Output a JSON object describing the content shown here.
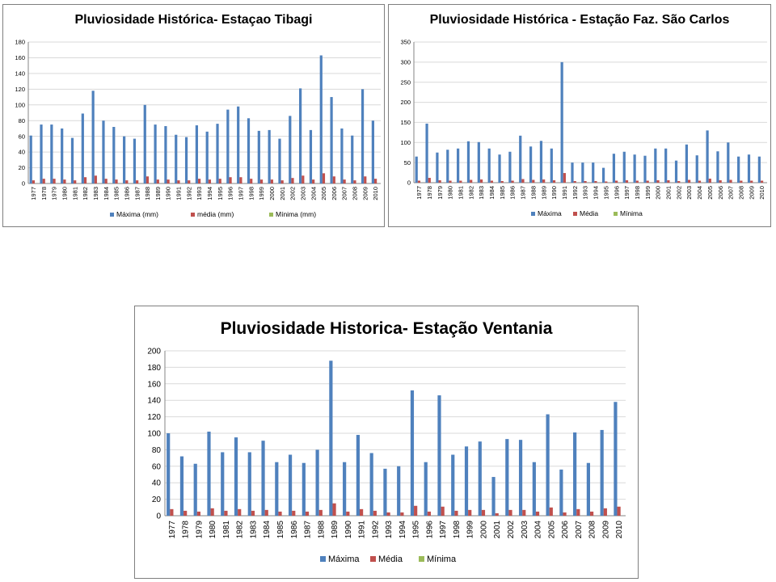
{
  "colors": {
    "maxima": "#4F81BD",
    "media": "#C0504D",
    "minima": "#9BBB59",
    "grid": "#D9D9D9",
    "axis": "#868686",
    "frame": "#7F7F7F"
  },
  "chart_data": [
    {
      "type": "bar",
      "title": "Pluviosidade Histórica- Estaçao Tibagi",
      "categories": [
        "1977",
        "1978",
        "1979",
        "1980",
        "1981",
        "1982",
        "1983",
        "1984",
        "1985",
        "1986",
        "1987",
        "1988",
        "1989",
        "1990",
        "1991",
        "1992",
        "1993",
        "1994",
        "1995",
        "1996",
        "1997",
        "1998",
        "1999",
        "2000",
        "2001",
        "2002",
        "2003",
        "2004",
        "2005",
        "2006",
        "2007",
        "2008",
        "2009",
        "2010"
      ],
      "series": [
        {
          "name": "Máxima (mm)",
          "color": "#4F81BD",
          "values": [
            61,
            75,
            75,
            70,
            58,
            89,
            118,
            80,
            72,
            60,
            57,
            100,
            75,
            73,
            62,
            59,
            74,
            66,
            76,
            94,
            98,
            83,
            67,
            68,
            57,
            86,
            121,
            68,
            163,
            110,
            70,
            61,
            120,
            80
          ]
        },
        {
          "name": "média (mm)",
          "color": "#C0504D",
          "values": [
            4,
            6,
            6,
            5,
            4,
            8,
            10,
            6,
            5,
            4,
            4,
            9,
            5,
            5,
            4,
            4,
            6,
            5,
            6,
            8,
            8,
            6,
            5,
            5,
            4,
            7,
            10,
            5,
            13,
            9,
            5,
            4,
            9,
            6
          ]
        },
        {
          "name": "Mínima (mm)",
          "color": "#9BBB59",
          "values": [
            0,
            0,
            0,
            0,
            0,
            0,
            0,
            0,
            0,
            0,
            0,
            0,
            0,
            0,
            0,
            0,
            0,
            0,
            0,
            0,
            0,
            0,
            0,
            0,
            0,
            0,
            0,
            0,
            0,
            0,
            0,
            0,
            0,
            0
          ]
        }
      ],
      "yticks": [
        "0",
        "20",
        "40",
        "60",
        "80",
        "100",
        "120",
        "140",
        "160",
        "180"
      ],
      "ylim": [
        0,
        180
      ],
      "grid": true,
      "legend": "bottom"
    },
    {
      "type": "bar",
      "title": "Pluviosidade Histórica - Estação Faz. São Carlos",
      "categories": [
        "1977",
        "1978",
        "1979",
        "1980",
        "1981",
        "1982",
        "1983",
        "1984",
        "1985",
        "1986",
        "1987",
        "1988",
        "1989",
        "1990",
        "1991",
        "1992",
        "1993",
        "1994",
        "1995",
        "1996",
        "1997",
        "1998",
        "1999",
        "2000",
        "2001",
        "2002",
        "2003",
        "2004",
        "2005",
        "2006",
        "2007",
        "2008",
        "2009",
        "2010"
      ],
      "series": [
        {
          "name": "Máxima",
          "color": "#4F81BD",
          "values": [
            65,
            147,
            75,
            82,
            85,
            103,
            101,
            85,
            70,
            77,
            117,
            90,
            104,
            85,
            300,
            50,
            50,
            50,
            37,
            72,
            77,
            70,
            67,
            85,
            85,
            55,
            95,
            68,
            130,
            78,
            100,
            65,
            70,
            65
          ]
        },
        {
          "name": "Média",
          "color": "#C0504D",
          "values": [
            5,
            12,
            6,
            5,
            5,
            7,
            8,
            5,
            4,
            5,
            9,
            7,
            8,
            6,
            24,
            4,
            4,
            4,
            3,
            5,
            6,
            5,
            5,
            6,
            6,
            4,
            7,
            5,
            10,
            6,
            7,
            5,
            5,
            5
          ]
        },
        {
          "name": "Mínima",
          "color": "#9BBB59",
          "values": [
            0,
            0,
            0,
            0,
            0,
            0,
            0,
            0,
            0,
            0,
            0,
            0,
            0,
            0,
            0,
            0,
            0,
            0,
            0,
            0,
            0,
            0,
            0,
            0,
            0,
            0,
            0,
            0,
            0,
            0,
            0,
            0,
            0,
            0
          ]
        }
      ],
      "yticks": [
        "0",
        "50",
        "100",
        "150",
        "200",
        "250",
        "300",
        "350"
      ],
      "ylim": [
        0,
        350
      ],
      "grid": true,
      "legend": "bottom"
    },
    {
      "type": "bar",
      "title": "Pluviosidade Historica- Estação Ventania",
      "categories": [
        "1977",
        "1978",
        "1979",
        "1980",
        "1981",
        "1982",
        "1983",
        "1984",
        "1985",
        "1986",
        "1987",
        "1988",
        "1989",
        "1990",
        "1991",
        "1992",
        "1993",
        "1994",
        "1995",
        "1996",
        "1997",
        "1998",
        "1999",
        "2000",
        "2001",
        "2002",
        "2003",
        "2004",
        "2005",
        "2006",
        "2007",
        "2008",
        "2009",
        "2010"
      ],
      "series": [
        {
          "name": "Máxima",
          "color": "#4F81BD",
          "values": [
            100,
            72,
            63,
            102,
            77,
            95,
            77,
            91,
            65,
            74,
            64,
            80,
            188,
            65,
            98,
            76,
            57,
            60,
            152,
            65,
            146,
            74,
            84,
            90,
            47,
            93,
            92,
            65,
            123,
            56,
            101,
            64,
            104,
            138
          ]
        },
        {
          "name": "Média",
          "color": "#C0504D",
          "values": [
            8,
            6,
            5,
            9,
            6,
            8,
            6,
            7,
            5,
            6,
            5,
            7,
            15,
            5,
            8,
            6,
            4,
            4,
            12,
            5,
            11,
            6,
            7,
            7,
            3,
            7,
            7,
            5,
            10,
            4,
            8,
            5,
            9,
            11
          ]
        },
        {
          "name": "Mínima",
          "color": "#9BBB59",
          "values": [
            0,
            0,
            0,
            0,
            0,
            0,
            0,
            0,
            0,
            0,
            0,
            0,
            0,
            0,
            0,
            0,
            0,
            0,
            0,
            0,
            0,
            0,
            0,
            0,
            0,
            0,
            0,
            0,
            0,
            0,
            0,
            0,
            0,
            0
          ]
        }
      ],
      "yticks": [
        "0",
        "20",
        "40",
        "60",
        "80",
        "100",
        "120",
        "140",
        "160",
        "180",
        "200"
      ],
      "ylim": [
        0,
        200
      ],
      "grid": true,
      "legend": "bottom"
    }
  ]
}
